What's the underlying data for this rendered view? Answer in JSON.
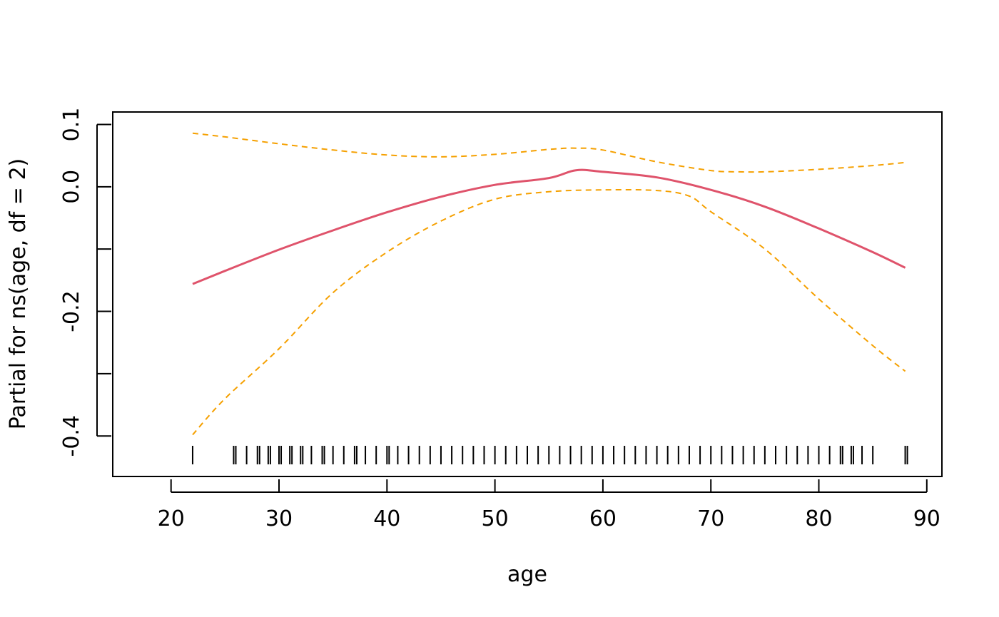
{
  "chart_data": {
    "type": "line",
    "title": "",
    "xlabel": "age",
    "ylabel": "Partial for ns(age, df = 2)",
    "xlim": [
      14.6,
      91.4
    ],
    "ylim": [
      -0.465,
      0.12
    ],
    "x_ticks": [
      20,
      30,
      40,
      50,
      60,
      70,
      80,
      90
    ],
    "x_tick_labels": [
      "20",
      "30",
      "40",
      "50",
      "60",
      "70",
      "80",
      "90"
    ],
    "y_ticks": [
      0.1,
      0.0,
      -0.1,
      -0.2,
      -0.3,
      -0.4
    ],
    "y_tick_labels": [
      "0.1",
      "0.0",
      "",
      "-0.2",
      "",
      "-0.4"
    ],
    "grid": false,
    "legend": "none",
    "series": [
      {
        "role": "fit",
        "color": "#DF536B",
        "style": "solid",
        "x": [
          22,
          25,
          30,
          35,
          40,
          45,
          50,
          55,
          57.5,
          60,
          65,
          70,
          75,
          80,
          85,
          88
        ],
        "y": [
          -0.156,
          -0.135,
          -0.101,
          -0.07,
          -0.041,
          -0.016,
          0.003,
          0.014,
          0.0265,
          0.024,
          0.015,
          -0.005,
          -0.032,
          -0.067,
          -0.105,
          -0.13
        ]
      },
      {
        "role": "upper-band",
        "color": "#F5A000",
        "style": "dashed",
        "x": [
          22,
          25,
          30,
          35,
          40,
          45,
          50,
          55,
          57.5,
          60,
          65,
          70,
          72.5,
          75,
          80,
          85,
          88
        ],
        "y": [
          0.086,
          0.08,
          0.069,
          0.059,
          0.051,
          0.048,
          0.052,
          0.06,
          0.062,
          0.059,
          0.04,
          0.026,
          0.024,
          0.024,
          0.028,
          0.034,
          0.039
        ]
      },
      {
        "role": "lower-band",
        "color": "#F5A000",
        "style": "dashed",
        "x": [
          22,
          25,
          30,
          35,
          40,
          45,
          50,
          55,
          60,
          65,
          68,
          70,
          75,
          80,
          85,
          88
        ],
        "y": [
          -0.398,
          -0.34,
          -0.26,
          -0.17,
          -0.105,
          -0.055,
          -0.02,
          -0.008,
          -0.005,
          -0.006,
          -0.015,
          -0.04,
          -0.1,
          -0.18,
          -0.255,
          -0.296
        ]
      }
    ],
    "rug": {
      "color": "#000000",
      "x": [
        22,
        25.8,
        26,
        27,
        28,
        28.2,
        29,
        29.2,
        30,
        30.2,
        31,
        31.2,
        32,
        32.2,
        33,
        34,
        34.2,
        35,
        36,
        37,
        37.2,
        38,
        39,
        40,
        40.2,
        41,
        42,
        43,
        44,
        45,
        46,
        47,
        48,
        49,
        50,
        51,
        52,
        53,
        54,
        55,
        56,
        57,
        58,
        59,
        60,
        61,
        62,
        63,
        64,
        65,
        66,
        67,
        68,
        69,
        70,
        71,
        72,
        73,
        74,
        75,
        76,
        77,
        78,
        79,
        80,
        81,
        82,
        82.2,
        83,
        83.2,
        84,
        85,
        88,
        88.2
      ]
    }
  }
}
